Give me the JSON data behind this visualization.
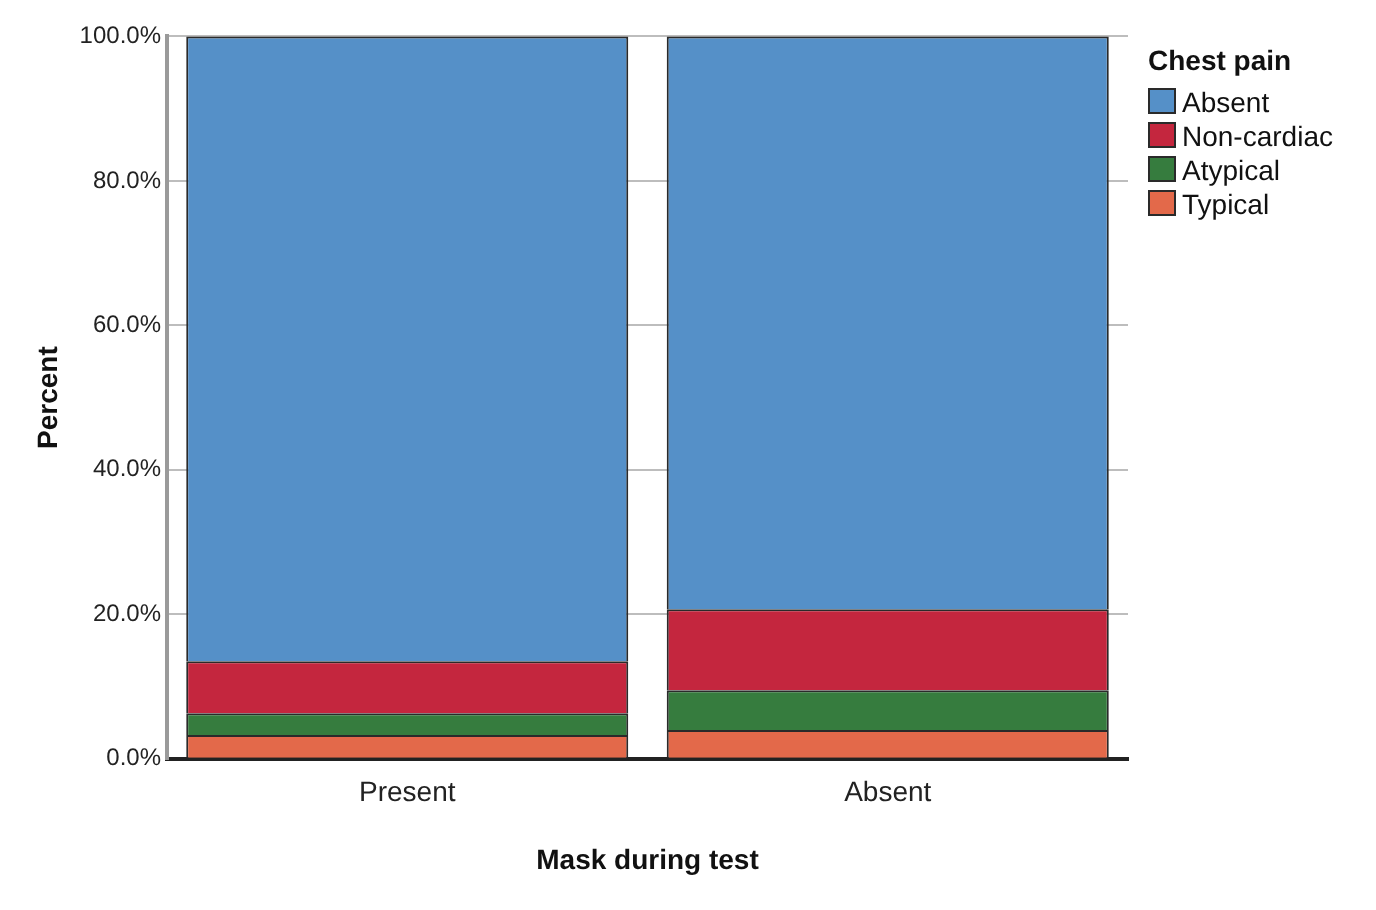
{
  "chart_data": {
    "type": "bar",
    "stacked": true,
    "xlabel": "Mask during test",
    "ylabel": "Percent",
    "legend_title": "Chest pain",
    "legend": "right",
    "categories": [
      "Present",
      "Absent"
    ],
    "series": [
      {
        "name": "Typical",
        "color": "#e3694a",
        "values": [
          3.3,
          4.0
        ]
      },
      {
        "name": "Atypical",
        "color": "#367c3e",
        "values": [
          3.0,
          5.5
        ]
      },
      {
        "name": "Non-cardiac",
        "color": "#c4263e",
        "values": [
          7.2,
          11.2
        ]
      },
      {
        "name": "Absent",
        "color": "#5590c8",
        "values": [
          86.5,
          79.3
        ]
      }
    ],
    "ylim": [
      0,
      100
    ],
    "yticks": [
      {
        "value": 0,
        "label": "0.0%"
      },
      {
        "value": 20,
        "label": "20.0%"
      },
      {
        "value": 40,
        "label": "40.0%"
      },
      {
        "value": 60,
        "label": "60.0%"
      },
      {
        "value": 80,
        "label": "80.0%"
      },
      {
        "value": 100,
        "label": "100.0%"
      }
    ],
    "grid": "y"
  }
}
